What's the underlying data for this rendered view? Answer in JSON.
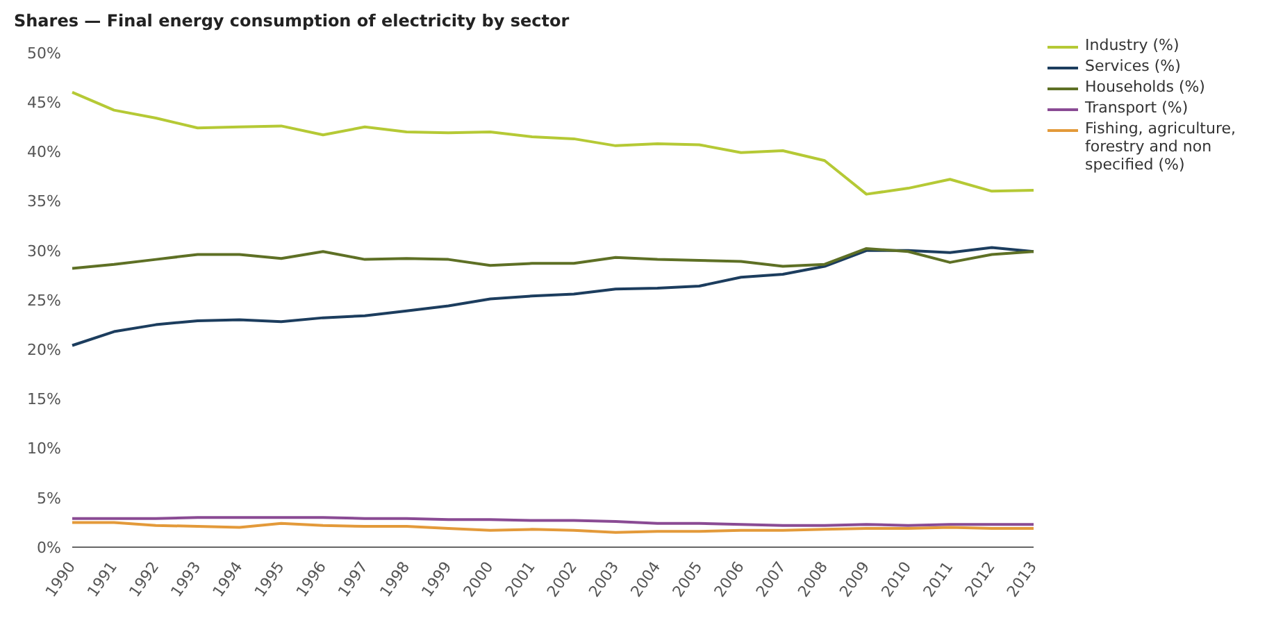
{
  "chart_data": {
    "type": "line",
    "title": "Shares — Final energy consumption of electricity by sector",
    "categories": [
      "1990",
      "1991",
      "1992",
      "1993",
      "1994",
      "1995",
      "1996",
      "1997",
      "1998",
      "1999",
      "2000",
      "2001",
      "2002",
      "2003",
      "2004",
      "2005",
      "2006",
      "2007",
      "2008",
      "2009",
      "2010",
      "2011",
      "2012",
      "2013"
    ],
    "series": [
      {
        "name": "Industry (%)",
        "color": "#b5c935",
        "values": [
          46,
          44.2,
          43.4,
          42.4,
          42.5,
          42.6,
          41.7,
          42.5,
          42,
          41.9,
          42,
          41.5,
          41.3,
          40.6,
          40.8,
          40.7,
          39.9,
          40.1,
          39.1,
          35.7,
          36.3,
          37.2,
          36,
          36.1
        ]
      },
      {
        "name": "Services (%)",
        "color": "#1c3d5e",
        "values": [
          20.4,
          21.8,
          22.5,
          22.9,
          23,
          22.8,
          23.2,
          23.4,
          23.9,
          24.4,
          25.1,
          25.4,
          25.6,
          26.1,
          26.2,
          26.4,
          27.3,
          27.6,
          28.4,
          30,
          30,
          29.8,
          30.3,
          29.9
        ]
      },
      {
        "name": "Households (%)",
        "color": "#5e7025",
        "values": [
          28.2,
          28.6,
          29.1,
          29.6,
          29.6,
          29.2,
          29.9,
          29.1,
          29.2,
          29.1,
          28.5,
          28.7,
          28.7,
          29.3,
          29.1,
          29,
          28.9,
          28.4,
          28.6,
          30.2,
          29.9,
          28.8,
          29.6,
          29.9
        ]
      },
      {
        "name": "Transport (%)",
        "color": "#8a4b94",
        "values": [
          2.9,
          2.9,
          2.9,
          3,
          3,
          3,
          3,
          2.9,
          2.9,
          2.8,
          2.8,
          2.7,
          2.7,
          2.6,
          2.4,
          2.4,
          2.3,
          2.2,
          2.2,
          2.3,
          2.2,
          2.3,
          2.3,
          2.3
        ]
      },
      {
        "name": "Fishing, agriculture, forestry and non specified (%)",
        "color": "#e39a3a",
        "values": [
          2.5,
          2.5,
          2.2,
          2.1,
          2,
          2.4,
          2.2,
          2.1,
          2.1,
          1.9,
          1.7,
          1.8,
          1.7,
          1.5,
          1.6,
          1.6,
          1.7,
          1.7,
          1.8,
          1.9,
          1.9,
          2,
          1.9,
          1.9
        ]
      }
    ],
    "ylim": [
      0,
      50
    ],
    "yticks": [
      {
        "value": 0,
        "label": "0%"
      },
      {
        "value": 5,
        "label": "5%"
      },
      {
        "value": 10,
        "label": "10%"
      },
      {
        "value": 15,
        "label": "15%"
      },
      {
        "value": 20,
        "label": "20%"
      },
      {
        "value": 25,
        "label": "25%"
      },
      {
        "value": 30,
        "label": "30%"
      },
      {
        "value": 35,
        "label": "35%"
      },
      {
        "value": 40,
        "label": "40%"
      },
      {
        "value": 45,
        "label": "45%"
      },
      {
        "value": 50,
        "label": "50%"
      }
    ],
    "grid": false,
    "legend": "top right",
    "marker": "none",
    "line_style": "solid"
  }
}
